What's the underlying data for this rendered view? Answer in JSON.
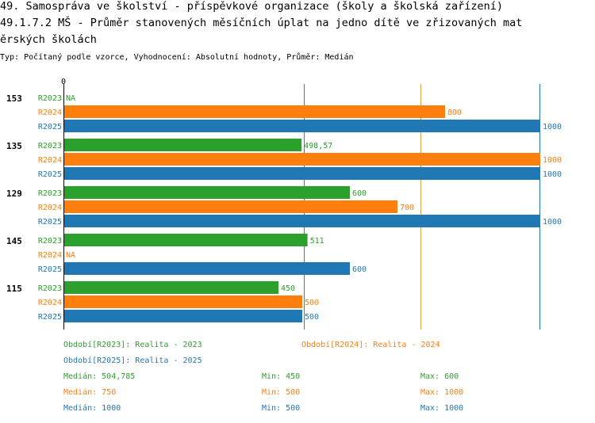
{
  "title_line1": "49. Samospráva ve školství - příspěvkové organizace (školy a školská zařízení)",
  "title_line2": "49.1.7.2 MŠ - Průměr stanovených měsíčních úplat na jedno dítě ve zřizovaných mat",
  "title_line3": "ěrských školách",
  "subtitle": "Typ: Počítaný podle vzorce, Vyhodnocení: Absolutní hodnoty, Průměr: Medián",
  "colors": {
    "R2023": "#2ca02c",
    "R2024": "#ff7f0e",
    "R2025": "#1f77b4",
    "ref_2023": "#2ca02c",
    "ref_2024": "#e8a04a",
    "ref_2025": "#1f77b4"
  },
  "chart_data": {
    "type": "bar",
    "orientation": "horizontal",
    "axis_zero_label": "0",
    "xlim": [
      0,
      1000
    ],
    "groups": [
      "153",
      "135",
      "129",
      "145",
      "115"
    ],
    "series": [
      {
        "name": "R2023",
        "values": [
          null,
          498.57,
          600,
          511,
          450
        ],
        "labels": [
          "NA",
          "498,57",
          "600",
          "511",
          "450"
        ]
      },
      {
        "name": "R2024",
        "values": [
          800,
          1000,
          700,
          null,
          500
        ],
        "labels": [
          "800",
          "1000",
          "700",
          "NA",
          "500"
        ]
      },
      {
        "name": "R2025",
        "values": [
          1000,
          1000,
          1000,
          600,
          500
        ],
        "labels": [
          "1000",
          "1000",
          "1000",
          "600",
          "500"
        ]
      }
    ],
    "reference_lines": [
      {
        "series": "R2023",
        "value": 504.785
      },
      {
        "series": "R2024",
        "value": 750
      },
      {
        "series": "R2025",
        "value": 1000
      }
    ]
  },
  "legend": {
    "period_2023": "Období[R2023]: Realita - 2023",
    "period_2024": "Období[R2024]: Realita - 2024",
    "period_2025": "Období[R2025]: Realita - 2025",
    "stats": [
      {
        "median": "Medián: 504,785",
        "min": "Min: 450",
        "max": "Max: 600"
      },
      {
        "median": "Medián: 750",
        "min": "Min: 500",
        "max": "Max: 1000"
      },
      {
        "median": "Medián: 1000",
        "min": "Min: 500",
        "max": "Max: 1000"
      }
    ]
  }
}
